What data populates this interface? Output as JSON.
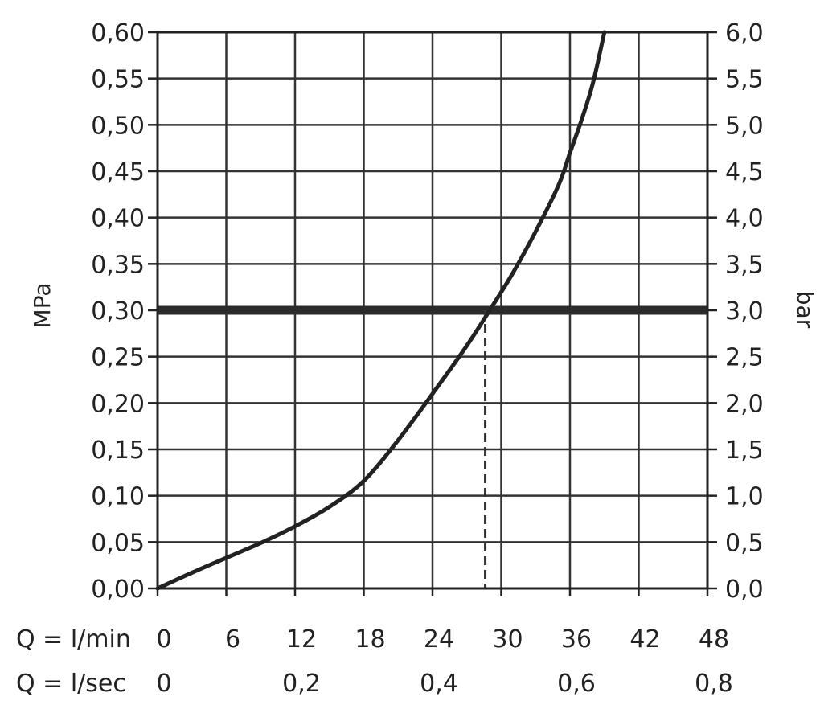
{
  "chart_data": {
    "type": "line",
    "title": "",
    "x_axis": {
      "label": "Q = l/min",
      "min": 0,
      "max": 48,
      "ticks": [
        "0",
        "6",
        "12",
        "18",
        "24",
        "30",
        "36",
        "42",
        "48"
      ],
      "secondary_label": "Q = l/sec",
      "secondary_ticks": [
        {
          "q": 0,
          "label": "0"
        },
        {
          "q": 12,
          "label": "0,2"
        },
        {
          "q": 24,
          "label": "0,4"
        },
        {
          "q": 36,
          "label": "0,6"
        },
        {
          "q": 48,
          "label": "0,8"
        }
      ]
    },
    "y_axis": {
      "label": "MPa",
      "min": 0,
      "max": 0.6,
      "ticks": [
        "0,00",
        "0,05",
        "0,10",
        "0,15",
        "0,20",
        "0,25",
        "0,30",
        "0,35",
        "0,40",
        "0,45",
        "0,50",
        "0,55",
        "0,60"
      ]
    },
    "y2_axis": {
      "label": "bar",
      "min": 0,
      "max": 6,
      "ticks": [
        "0,0",
        "0,5",
        "1,0",
        "1,5",
        "2,0",
        "2,5",
        "3,0",
        "3,5",
        "4,0",
        "4,5",
        "5,0",
        "5,5",
        "6,0"
      ]
    },
    "grid": true,
    "series": [
      {
        "points": [
          [
            0,
            0
          ],
          [
            3,
            0.017
          ],
          [
            6,
            0.033
          ],
          [
            9,
            0.049
          ],
          [
            12,
            0.067
          ],
          [
            15,
            0.088
          ],
          [
            18,
            0.116
          ],
          [
            21,
            0.16
          ],
          [
            24,
            0.21
          ],
          [
            27,
            0.262
          ],
          [
            29.5,
            0.31
          ],
          [
            31,
            0.34
          ],
          [
            33,
            0.385
          ],
          [
            35,
            0.435
          ],
          [
            36,
            0.47
          ],
          [
            37,
            0.505
          ],
          [
            38,
            0.545
          ],
          [
            39,
            0.6
          ]
        ]
      }
    ],
    "reference_line_y": 0.3,
    "operating_point_q": 28.6
  }
}
